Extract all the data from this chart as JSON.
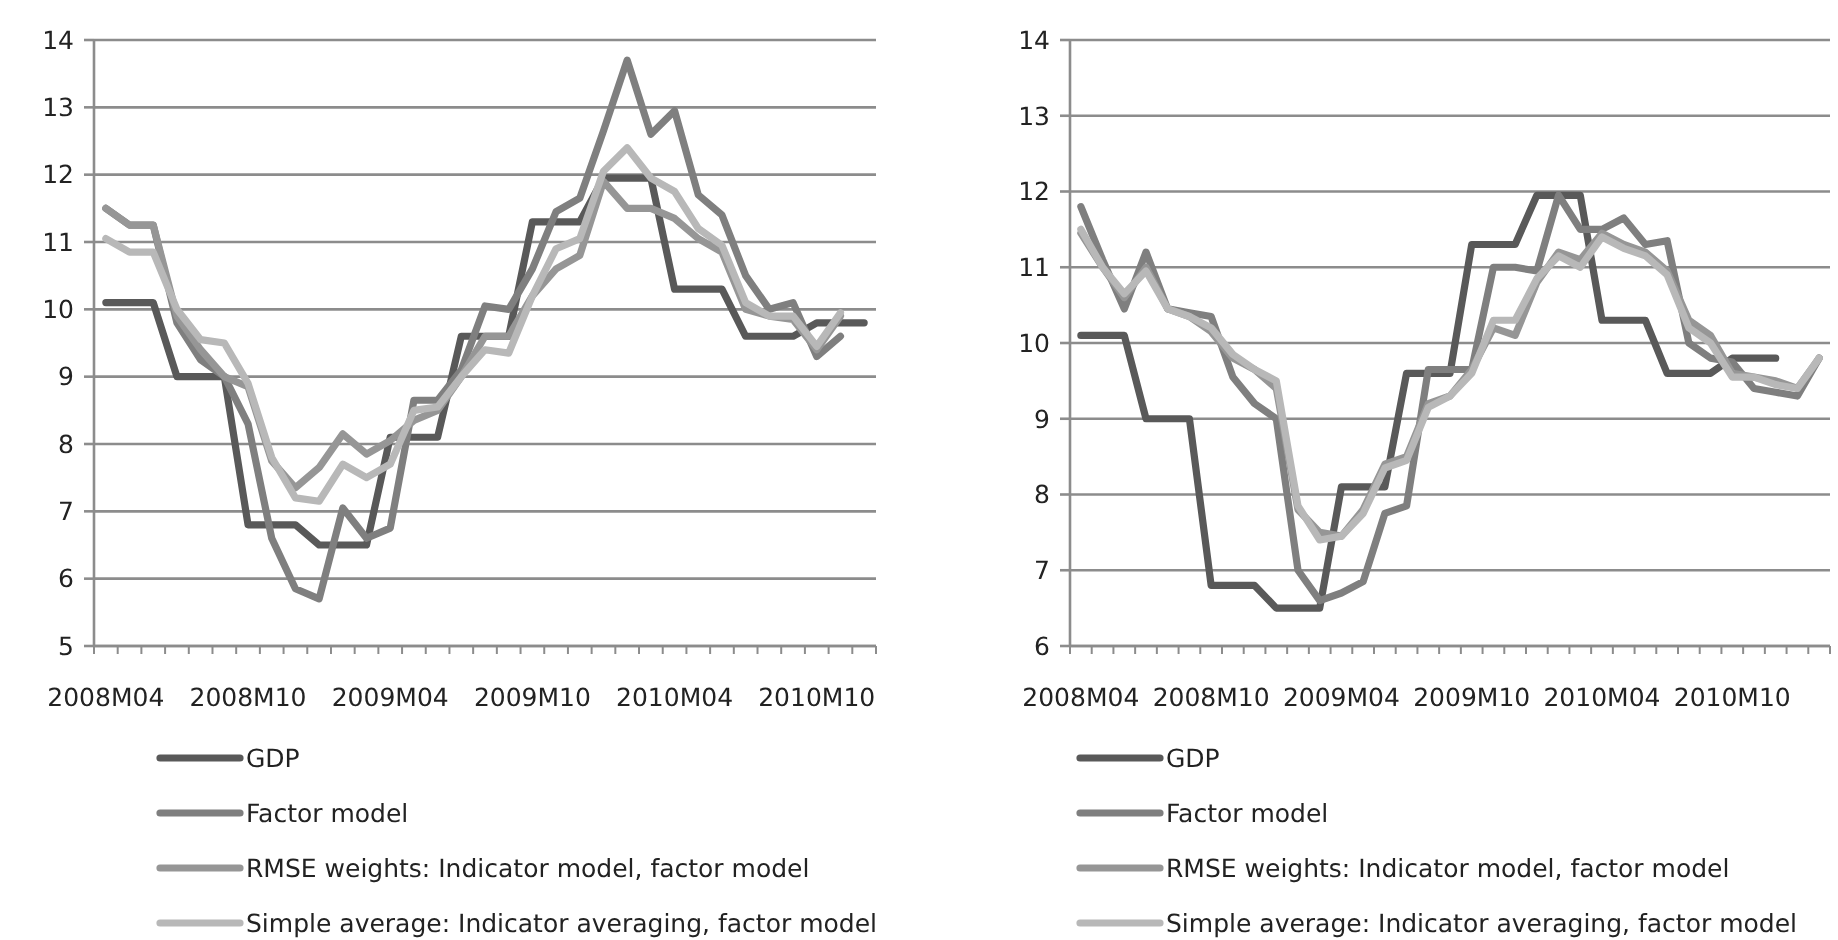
{
  "chart_data": [
    {
      "type": "line",
      "categories": [
        "2008M04",
        null,
        null,
        null,
        null,
        null,
        "2008M10",
        null,
        null,
        null,
        null,
        null,
        "2009M04",
        null,
        null,
        null,
        null,
        null,
        "2009M10",
        null,
        null,
        null,
        null,
        null,
        "2010M04",
        null,
        null,
        null,
        null,
        null,
        "2010M10",
        null,
        null
      ],
      "ylim": [
        5,
        14
      ],
      "yticks": [
        5,
        6,
        7,
        8,
        9,
        10,
        11,
        12,
        13,
        14
      ],
      "grid": "y",
      "legend": "bottom",
      "marker": "none",
      "line_style": "solid",
      "series": [
        {
          "name": "GDP",
          "color": "#595959",
          "values": [
            10.1,
            10.1,
            10.1,
            9.0,
            9.0,
            9.0,
            6.8,
            6.8,
            6.8,
            6.5,
            6.5,
            6.5,
            8.1,
            8.1,
            8.1,
            9.6,
            9.6,
            9.6,
            11.3,
            11.3,
            11.3,
            11.95,
            11.95,
            11.95,
            10.3,
            10.3,
            10.3,
            9.6,
            9.6,
            9.6,
            9.8,
            9.8,
            9.8
          ]
        },
        {
          "name": "Factor model",
          "color": "#7f7f7f",
          "values": [
            11.5,
            11.25,
            11.25,
            9.8,
            9.25,
            9.0,
            8.3,
            6.6,
            5.85,
            5.7,
            7.05,
            6.6,
            6.75,
            8.65,
            8.65,
            9.1,
            10.05,
            10.0,
            10.6,
            11.45,
            11.65,
            12.65,
            13.7,
            12.6,
            12.95,
            11.7,
            11.4,
            10.5,
            10.0,
            10.1,
            9.3,
            9.6,
            null
          ]
        },
        {
          "name": "RMSE weights: Indicator model, factor model",
          "color": "#969696",
          "values": [
            11.5,
            11.25,
            11.25,
            9.9,
            9.4,
            9.0,
            8.85,
            7.75,
            7.35,
            7.65,
            8.15,
            7.85,
            8.05,
            8.35,
            8.5,
            9.0,
            9.6,
            9.6,
            10.2,
            10.6,
            10.8,
            11.9,
            11.5,
            11.5,
            11.35,
            11.05,
            10.85,
            10.0,
            9.9,
            9.85,
            9.4,
            9.9,
            null
          ]
        },
        {
          "name": "Simple average: Indicator averaging, factor model",
          "color": "#b8b8b8",
          "values": [
            11.05,
            10.85,
            10.85,
            10.0,
            9.55,
            9.5,
            8.9,
            7.8,
            7.2,
            7.15,
            7.7,
            7.5,
            7.7,
            8.5,
            8.55,
            9.0,
            9.4,
            9.35,
            10.2,
            10.9,
            11.05,
            12.05,
            12.4,
            11.95,
            11.75,
            11.2,
            10.95,
            10.1,
            9.9,
            9.9,
            9.45,
            9.95,
            null
          ]
        }
      ]
    },
    {
      "type": "line",
      "categories": [
        "2008M04",
        null,
        null,
        null,
        null,
        null,
        "2008M10",
        null,
        null,
        null,
        null,
        null,
        "2009M04",
        null,
        null,
        null,
        null,
        null,
        "2009M10",
        null,
        null,
        null,
        null,
        null,
        "2010M04",
        null,
        null,
        null,
        null,
        null,
        "2010M10",
        null,
        null,
        null,
        null
      ],
      "ylim": [
        6,
        14
      ],
      "yticks": [
        6,
        7,
        8,
        9,
        10,
        11,
        12,
        13,
        14
      ],
      "grid": "y",
      "legend": "bottom",
      "marker": "none",
      "line_style": "solid",
      "series": [
        {
          "name": "GDP",
          "color": "#595959",
          "values": [
            10.1,
            10.1,
            10.1,
            9.0,
            9.0,
            9.0,
            6.8,
            6.8,
            6.8,
            6.5,
            6.5,
            6.5,
            8.1,
            8.1,
            8.1,
            9.6,
            9.6,
            9.6,
            11.3,
            11.3,
            11.3,
            11.95,
            11.95,
            11.95,
            10.3,
            10.3,
            10.3,
            9.6,
            9.6,
            9.6,
            9.8,
            9.8,
            9.8,
            null,
            null
          ]
        },
        {
          "name": "Factor model",
          "color": "#7f7f7f",
          "values": [
            11.8,
            11.1,
            10.45,
            11.2,
            10.45,
            10.4,
            10.35,
            9.55,
            9.2,
            9.0,
            7.0,
            6.6,
            6.7,
            6.85,
            7.75,
            7.85,
            9.65,
            9.65,
            9.65,
            11.0,
            11.0,
            10.95,
            11.95,
            11.5,
            11.5,
            11.65,
            11.3,
            11.35,
            10.0,
            9.8,
            9.75,
            9.4,
            9.35,
            9.3,
            9.8
          ]
        },
        {
          "name": "RMSE weights: Indicator model, factor model",
          "color": "#969696",
          "values": [
            11.45,
            11.0,
            10.6,
            11.0,
            10.45,
            10.35,
            10.15,
            9.8,
            9.65,
            9.4,
            7.8,
            7.5,
            7.45,
            7.8,
            8.4,
            8.5,
            9.2,
            9.3,
            9.65,
            10.2,
            10.1,
            10.8,
            11.2,
            11.1,
            11.45,
            11.3,
            11.2,
            10.95,
            10.3,
            10.1,
            9.6,
            9.55,
            9.5,
            9.4,
            9.8
          ]
        },
        {
          "name": "Simple average: Indicator averaging, factor model",
          "color": "#b8b8b8",
          "values": [
            11.5,
            11.0,
            10.65,
            10.95,
            10.45,
            10.35,
            10.2,
            9.85,
            9.65,
            9.5,
            7.85,
            7.4,
            7.45,
            7.75,
            8.35,
            8.45,
            9.15,
            9.3,
            9.6,
            10.3,
            10.3,
            10.85,
            11.15,
            11.0,
            11.4,
            11.25,
            11.15,
            10.9,
            10.2,
            10.0,
            9.55,
            9.55,
            9.45,
            9.4,
            9.8
          ]
        }
      ]
    }
  ]
}
